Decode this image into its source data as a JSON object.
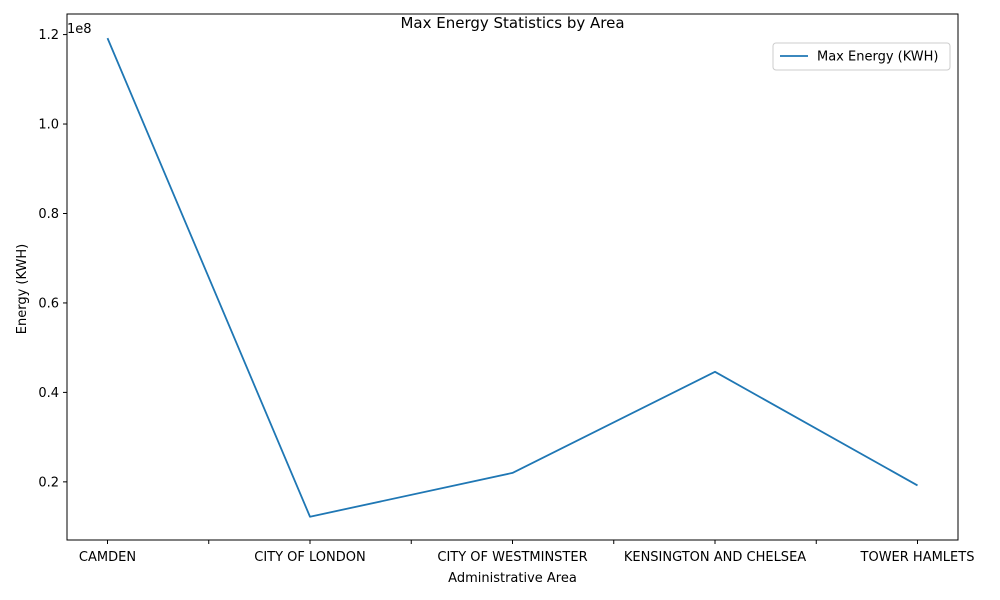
{
  "chart_data": {
    "type": "line",
    "title": "Max Energy Statistics by Area",
    "xlabel": "Administrative Area",
    "ylabel": "Energy (KWH)",
    "y_offset_label": "1e8",
    "categories": [
      "CAMDEN",
      "CITY OF LONDON",
      "CITY OF WESTMINSTER",
      "KENSINGTON AND CHELSEA",
      "TOWER HAMLETS"
    ],
    "series": [
      {
        "name": "Max Energy (KWH)",
        "color": "#1f77b4",
        "values": [
          119200000,
          12200000,
          22000000,
          44600000,
          19200000
        ]
      }
    ],
    "ylim": [
      7000000,
      124600000
    ],
    "yticks": [
      20000000,
      40000000,
      60000000,
      80000000,
      100000000,
      120000000
    ],
    "ytick_labels": [
      "0.2",
      "0.4",
      "0.6",
      "0.8",
      "1.0",
      "1.2"
    ],
    "grid": false,
    "legend_position": "upper right"
  }
}
